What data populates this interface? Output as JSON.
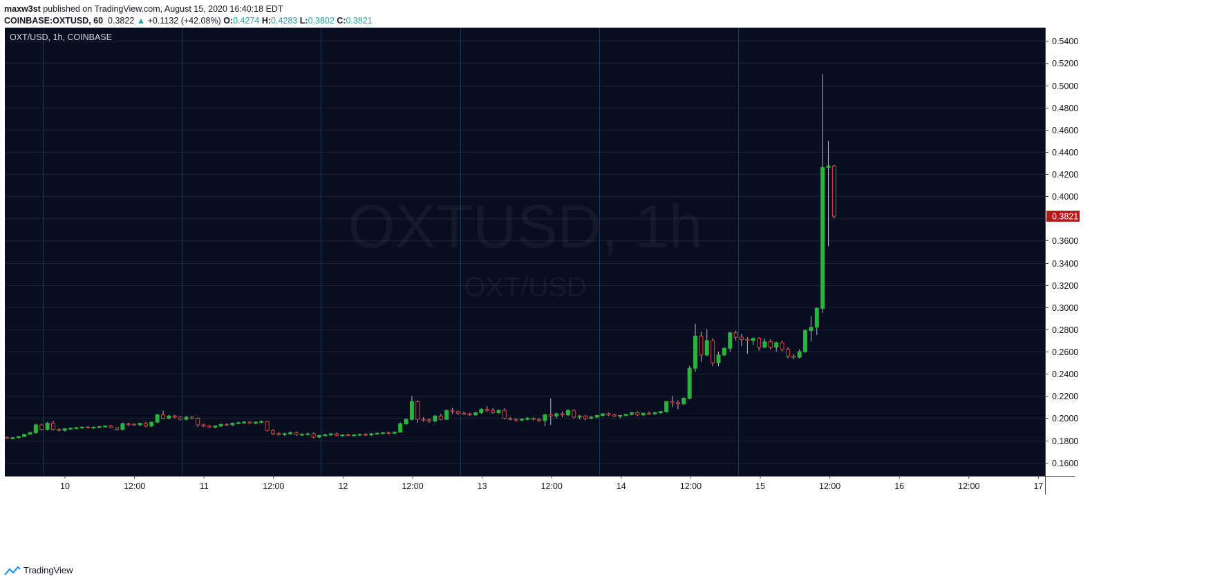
{
  "header": {
    "publisher": "maxw3st",
    "published_text": "published on TradingView.com, August 15, 2020 16:40:18 EDT"
  },
  "ohlc": {
    "symbol": "COINBASE:OXTUSD, 60",
    "price": "0.3822",
    "arrow": "▲",
    "change": "+0.1132 (+42.08%)",
    "o_label": "O:",
    "o": "0.4274",
    "h_label": "H:",
    "h": "0.4283",
    "l_label": "L:",
    "l": "0.3802",
    "c_label": "C:",
    "c": "0.3821"
  },
  "colors": {
    "background": "#080d1f",
    "grid": "#1c2233",
    "session_line": "#17385a",
    "up": "#26b43b",
    "down": "#d8423f",
    "wick": "#b8bcc8",
    "axis_text": "#131722",
    "price_label_bg": "#b51a1a"
  },
  "chart_data": {
    "type": "candlestick",
    "title": "OXT/USD, 1h, COINBASE",
    "watermark": "OXTUSD, 1h",
    "watermark_sub": "OXT/USD",
    "ylim": [
      0.148,
      0.552
    ],
    "y_ticks": [
      "0.5400",
      "0.5200",
      "0.5000",
      "0.4800",
      "0.4600",
      "0.4400",
      "0.4200",
      "0.4000",
      "0.3800",
      "0.3600",
      "0.3400",
      "0.3200",
      "0.3000",
      "0.2800",
      "0.2600",
      "0.2400",
      "0.2200",
      "0.2000",
      "0.1800",
      "0.1600"
    ],
    "x_ticks": [
      "10",
      "12:00",
      "11",
      "12:00",
      "12",
      "12:00",
      "13",
      "12:00",
      "14",
      "12:00",
      "15",
      "12:00",
      "16",
      "12:00",
      "17"
    ],
    "last_price_label": "0.3821",
    "last_price": 0.3821,
    "candles": [
      [
        0.1828,
        0.1835,
        0.1818,
        0.1822
      ],
      [
        0.1822,
        0.183,
        0.181,
        0.1825
      ],
      [
        0.1825,
        0.184,
        0.1815,
        0.1835
      ],
      [
        0.1835,
        0.186,
        0.183,
        0.1855
      ],
      [
        0.1855,
        0.188,
        0.185,
        0.187
      ],
      [
        0.187,
        0.195,
        0.186,
        0.194
      ],
      [
        0.194,
        0.195,
        0.189,
        0.19
      ],
      [
        0.19,
        0.1965,
        0.189,
        0.1955
      ],
      [
        0.1955,
        0.1975,
        0.189,
        0.19
      ],
      [
        0.19,
        0.191,
        0.188,
        0.189
      ],
      [
        0.189,
        0.191,
        0.188,
        0.1905
      ],
      [
        0.1905,
        0.1915,
        0.1895,
        0.191
      ],
      [
        0.191,
        0.192,
        0.19,
        0.1915
      ],
      [
        0.1915,
        0.1925,
        0.1905,
        0.192
      ],
      [
        0.192,
        0.193,
        0.191,
        0.1915
      ],
      [
        0.1915,
        0.1925,
        0.1905,
        0.192
      ],
      [
        0.192,
        0.193,
        0.191,
        0.1925
      ],
      [
        0.1925,
        0.1935,
        0.1915,
        0.193
      ],
      [
        0.193,
        0.194,
        0.191,
        0.1915
      ],
      [
        0.1915,
        0.192,
        0.189,
        0.19
      ],
      [
        0.19,
        0.196,
        0.189,
        0.195
      ],
      [
        0.195,
        0.196,
        0.193,
        0.1945
      ],
      [
        0.1945,
        0.1955,
        0.1935,
        0.194
      ],
      [
        0.194,
        0.196,
        0.193,
        0.1955
      ],
      [
        0.1955,
        0.1965,
        0.192,
        0.193
      ],
      [
        0.193,
        0.197,
        0.192,
        0.1965
      ],
      [
        0.1965,
        0.204,
        0.1955,
        0.203
      ],
      [
        0.203,
        0.207,
        0.199,
        0.2
      ],
      [
        0.2,
        0.203,
        0.199,
        0.202
      ],
      [
        0.202,
        0.203,
        0.2,
        0.201
      ],
      [
        0.201,
        0.202,
        0.198,
        0.199
      ],
      [
        0.199,
        0.202,
        0.198,
        0.201
      ],
      [
        0.201,
        0.202,
        0.199,
        0.2
      ],
      [
        0.2,
        0.201,
        0.192,
        0.194
      ],
      [
        0.194,
        0.195,
        0.192,
        0.193
      ],
      [
        0.193,
        0.194,
        0.191,
        0.192
      ],
      [
        0.192,
        0.1935,
        0.191,
        0.193
      ],
      [
        0.193,
        0.195,
        0.192,
        0.1945
      ],
      [
        0.1945,
        0.1955,
        0.193,
        0.194
      ],
      [
        0.194,
        0.196,
        0.193,
        0.1955
      ],
      [
        0.1955,
        0.197,
        0.1945,
        0.196
      ],
      [
        0.196,
        0.1975,
        0.195,
        0.1965
      ],
      [
        0.1965,
        0.1975,
        0.195,
        0.1955
      ],
      [
        0.1955,
        0.197,
        0.1945,
        0.1965
      ],
      [
        0.1965,
        0.198,
        0.1955,
        0.197
      ],
      [
        0.197,
        0.1975,
        0.188,
        0.189
      ],
      [
        0.189,
        0.19,
        0.185,
        0.186
      ],
      [
        0.186,
        0.1875,
        0.1845,
        0.1855
      ],
      [
        0.1855,
        0.187,
        0.184,
        0.186
      ],
      [
        0.186,
        0.188,
        0.185,
        0.187
      ],
      [
        0.187,
        0.188,
        0.184,
        0.185
      ],
      [
        0.185,
        0.1865,
        0.184,
        0.1855
      ],
      [
        0.1855,
        0.187,
        0.1845,
        0.186
      ],
      [
        0.186,
        0.187,
        0.182,
        0.183
      ],
      [
        0.183,
        0.185,
        0.182,
        0.1845
      ],
      [
        0.1845,
        0.186,
        0.1835,
        0.185
      ],
      [
        0.185,
        0.1865,
        0.184,
        0.186
      ],
      [
        0.186,
        0.187,
        0.184,
        0.1845
      ],
      [
        0.1845,
        0.1855,
        0.1835,
        0.185
      ],
      [
        0.185,
        0.186,
        0.184,
        0.1845
      ],
      [
        0.1845,
        0.1855,
        0.1835,
        0.185
      ],
      [
        0.185,
        0.186,
        0.184,
        0.1855
      ],
      [
        0.1855,
        0.1865,
        0.184,
        0.185
      ],
      [
        0.185,
        0.1865,
        0.184,
        0.186
      ],
      [
        0.186,
        0.187,
        0.185,
        0.1865
      ],
      [
        0.1865,
        0.1875,
        0.1855,
        0.187
      ],
      [
        0.187,
        0.188,
        0.1855,
        0.1865
      ],
      [
        0.1865,
        0.188,
        0.1855,
        0.1875
      ],
      [
        0.1875,
        0.196,
        0.187,
        0.195
      ],
      [
        0.195,
        0.2,
        0.194,
        0.199
      ],
      [
        0.199,
        0.22,
        0.198,
        0.215
      ],
      [
        0.215,
        0.216,
        0.196,
        0.199
      ],
      [
        0.199,
        0.201,
        0.197,
        0.1985
      ],
      [
        0.1985,
        0.2,
        0.196,
        0.1975
      ],
      [
        0.1975,
        0.203,
        0.1965,
        0.202
      ],
      [
        0.202,
        0.204,
        0.198,
        0.199
      ],
      [
        0.199,
        0.208,
        0.1985,
        0.207
      ],
      [
        0.207,
        0.209,
        0.204,
        0.206
      ],
      [
        0.206,
        0.207,
        0.203,
        0.2045
      ],
      [
        0.2045,
        0.206,
        0.203,
        0.204
      ],
      [
        0.204,
        0.205,
        0.202,
        0.203
      ],
      [
        0.203,
        0.206,
        0.202,
        0.205
      ],
      [
        0.205,
        0.209,
        0.204,
        0.208
      ],
      [
        0.208,
        0.211,
        0.206,
        0.207
      ],
      [
        0.207,
        0.209,
        0.204,
        0.205
      ],
      [
        0.205,
        0.208,
        0.204,
        0.207
      ],
      [
        0.207,
        0.209,
        0.199,
        0.2
      ],
      [
        0.2,
        0.201,
        0.198,
        0.199
      ],
      [
        0.199,
        0.2,
        0.197,
        0.1985
      ],
      [
        0.1985,
        0.2,
        0.1975,
        0.199
      ],
      [
        0.199,
        0.201,
        0.198,
        0.2
      ],
      [
        0.2,
        0.201,
        0.198,
        0.199
      ],
      [
        0.199,
        0.2,
        0.197,
        0.198
      ],
      [
        0.198,
        0.204,
        0.193,
        0.203
      ],
      [
        0.203,
        0.218,
        0.194,
        0.202
      ],
      [
        0.202,
        0.205,
        0.2,
        0.204
      ],
      [
        0.204,
        0.206,
        0.201,
        0.203
      ],
      [
        0.203,
        0.208,
        0.202,
        0.207
      ],
      [
        0.207,
        0.208,
        0.2,
        0.201
      ],
      [
        0.201,
        0.203,
        0.199,
        0.202
      ],
      [
        0.202,
        0.203,
        0.198,
        0.2
      ],
      [
        0.2,
        0.202,
        0.199,
        0.201
      ],
      [
        0.201,
        0.203,
        0.2,
        0.2025
      ],
      [
        0.2025,
        0.2045,
        0.2015,
        0.204
      ],
      [
        0.204,
        0.205,
        0.202,
        0.203
      ],
      [
        0.203,
        0.204,
        0.201,
        0.202
      ],
      [
        0.202,
        0.203,
        0.2,
        0.2025
      ],
      [
        0.2025,
        0.204,
        0.2015,
        0.2035
      ],
      [
        0.2035,
        0.2055,
        0.2025,
        0.205
      ],
      [
        0.205,
        0.206,
        0.202,
        0.203
      ],
      [
        0.203,
        0.205,
        0.202,
        0.2045
      ],
      [
        0.2045,
        0.206,
        0.203,
        0.204
      ],
      [
        0.204,
        0.206,
        0.203,
        0.205
      ],
      [
        0.205,
        0.2065,
        0.204,
        0.206
      ],
      [
        0.206,
        0.212,
        0.205,
        0.215
      ],
      [
        0.215,
        0.22,
        0.21,
        0.214
      ],
      [
        0.214,
        0.216,
        0.208,
        0.213
      ],
      [
        0.213,
        0.219,
        0.212,
        0.218
      ],
      [
        0.218,
        0.247,
        0.217,
        0.245
      ],
      [
        0.245,
        0.285,
        0.242,
        0.274
      ],
      [
        0.274,
        0.278,
        0.251,
        0.257
      ],
      [
        0.257,
        0.28,
        0.256,
        0.27
      ],
      [
        0.27,
        0.272,
        0.247,
        0.25
      ],
      [
        0.25,
        0.26,
        0.247,
        0.257
      ],
      [
        0.257,
        0.264,
        0.256,
        0.263
      ],
      [
        0.263,
        0.278,
        0.26,
        0.277
      ],
      [
        0.277,
        0.279,
        0.27,
        0.273
      ],
      [
        0.273,
        0.276,
        0.265,
        0.271
      ],
      [
        0.271,
        0.273,
        0.258,
        0.27
      ],
      [
        0.27,
        0.273,
        0.266,
        0.272
      ],
      [
        0.272,
        0.273,
        0.261,
        0.264
      ],
      [
        0.264,
        0.272,
        0.263,
        0.269
      ],
      [
        0.269,
        0.271,
        0.262,
        0.264
      ],
      [
        0.264,
        0.269,
        0.26,
        0.268
      ],
      [
        0.268,
        0.27,
        0.26,
        0.262
      ],
      [
        0.262,
        0.264,
        0.254,
        0.256
      ],
      [
        0.256,
        0.258,
        0.253,
        0.255
      ],
      [
        0.255,
        0.262,
        0.254,
        0.26
      ],
      [
        0.26,
        0.28,
        0.259,
        0.279
      ],
      [
        0.279,
        0.292,
        0.269,
        0.282
      ],
      [
        0.282,
        0.3,
        0.275,
        0.299
      ],
      [
        0.299,
        0.51,
        0.295,
        0.426
      ],
      [
        0.426,
        0.45,
        0.355,
        0.4274
      ],
      [
        0.4274,
        0.4283,
        0.3802,
        0.3821
      ]
    ]
  },
  "footer": {
    "brand": "TradingView"
  }
}
